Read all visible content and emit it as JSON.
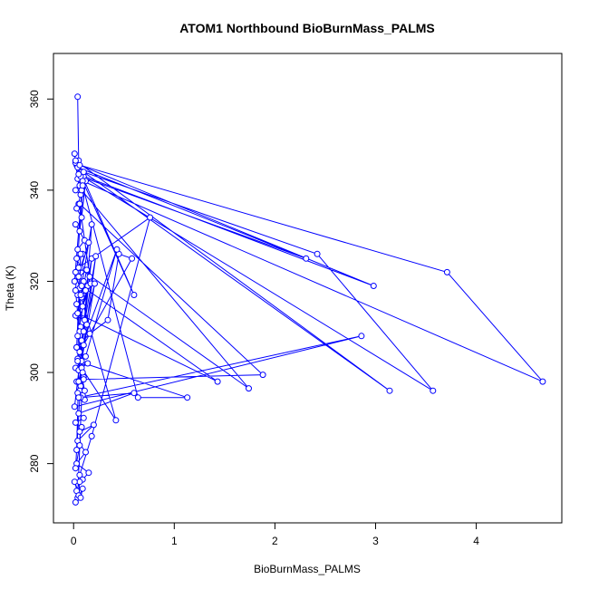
{
  "chart_data": {
    "type": "line",
    "title": "ATOM1 Northbound BioBurnMass_PALMS",
    "xlabel": "BioBurnMass_PALMS",
    "ylabel": "Theta (K)",
    "xlim": [
      -0.2,
      4.85
    ],
    "ylim": [
      267,
      370
    ],
    "xticks": [
      0,
      1,
      2,
      3,
      4
    ],
    "yticks": [
      280,
      300,
      320,
      340,
      360
    ],
    "series_color": "#0000ff",
    "grid": false,
    "legend": "none",
    "series": [
      {
        "x": [
          0.04,
          0.05,
          0.03,
          0.08,
          0.06,
          0.02,
          0.01,
          0.04,
          0.07,
          0.02,
          0.1,
          0.05,
          0.03,
          0.08,
          0.12,
          0.06,
          0.02,
          0.11,
          0.04,
          0.09,
          0.03,
          0.07,
          0.15,
          0.05,
          0.1,
          0.02,
          0.06,
          0.14,
          0.04,
          0.08,
          0.12,
          0.03,
          0.09,
          0.17,
          0.05,
          0.11,
          0.02,
          0.07,
          0.13,
          0.06,
          0.04,
          0.18,
          0.08,
          0.22,
          0.1,
          0.03,
          0.16,
          0.34,
          0.45,
          0.58,
          0.06,
          0.43,
          0.12,
          0.04,
          0.21,
          0.08,
          0.02,
          0.14,
          0.05,
          0.1,
          0.03,
          0.07,
          0.06,
          0.09,
          0.11,
          0.04,
          0.07,
          0.6,
          0.05,
          0.1,
          0.02,
          0.08,
          0.06,
          0.2,
          0.04,
          0.12,
          0.03,
          0.15,
          0.09,
          0.06,
          0.18,
          0.76,
          0.05,
          1.74,
          0.08,
          0.04,
          2.31,
          0.07,
          0.6,
          0.02,
          3.14,
          0.1,
          2.42,
          3.57,
          0.05,
          2.98,
          0.06,
          3.71,
          4.66,
          0.09,
          0.01,
          0.13,
          0.04,
          1.43,
          0.08,
          0.18,
          0.05,
          2.86,
          0.01,
          0.16,
          0.06,
          1.88,
          0.1,
          0.02,
          0.09,
          0.64,
          1.13,
          0.04,
          0.07,
          0.03,
          0.11,
          0.05,
          0.08,
          0.42,
          0.07,
          0.03,
          0.1,
          0.02,
          0.06,
          0.09,
          0.04,
          0.03,
          0.06,
          0.05,
          0.01,
          0.07,
          0.09,
          0.02
        ],
        "y": [
          360.5,
          346.5,
          345.5,
          344.0,
          341.0,
          346.0,
          348.0,
          342.5,
          339.0,
          340.0,
          343.0,
          337.0,
          336.0,
          334.0,
          342.0,
          331.0,
          332.5,
          329.0,
          327.0,
          326.0,
          325.0,
          323.0,
          328.5,
          321.0,
          320.0,
          322.0,
          318.5,
          319.0,
          317.0,
          316.5,
          318.0,
          315.0,
          314.5,
          319.5,
          313.0,
          311.5,
          312.5,
          310.0,
          310.5,
          309.0,
          308.0,
          325.0,
          307.0,
          325.5,
          306.0,
          305.5,
          308.5,
          311.5,
          326.0,
          325.0,
          304.5,
          327.0,
          303.5,
          303.0,
          319.5,
          302.5,
          301.0,
          302.0,
          300.5,
          299.0,
          298.0,
          297.0,
          296.0,
          295.0,
          294.0,
          295.5,
          294.5,
          295.5,
          291.0,
          290.0,
          289.0,
          288.0,
          287.0,
          288.5,
          285.0,
          282.5,
          280.0,
          278.0,
          276.5,
          277.5,
          286.0,
          334.0,
          323.0,
          296.5,
          340.0,
          345.0,
          325.0,
          343.0,
          317.0,
          346.5,
          296.0,
          344.0,
          326.0,
          296.0,
          343.5,
          319.0,
          345.5,
          322.0,
          298.0,
          342.0,
          320.0,
          322.5,
          313.0,
          298.0,
          319.0,
          332.5,
          294.5,
          308.0,
          292.5,
          321.0,
          337.0,
          299.5,
          298.5,
          318.0,
          341.0,
          294.5,
          294.5,
          302.5,
          326.0,
          305.5,
          296.0,
          298.0,
          301.0,
          289.5,
          317.0,
          283.0,
          309.0,
          279.0,
          284.0,
          300.0,
          272.5,
          274.0,
          276.0,
          273.0,
          276.0,
          272.5,
          274.5,
          271.5
        ]
      }
    ]
  }
}
